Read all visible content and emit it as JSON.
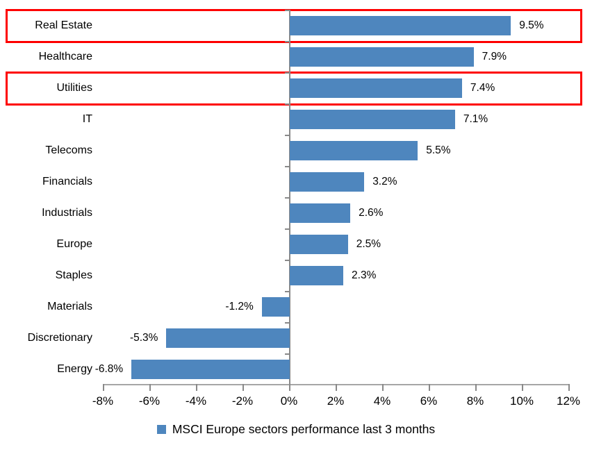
{
  "chart_data": {
    "type": "bar",
    "orientation": "horizontal",
    "title": "",
    "categories": [
      "Real Estate",
      "Healthcare",
      "Utilities",
      "IT",
      "Telecoms",
      "Financials",
      "Industrials",
      "Europe",
      "Staples",
      "Materials",
      "Discretionary",
      "Energy"
    ],
    "values": [
      9.5,
      7.9,
      7.4,
      7.1,
      5.5,
      3.2,
      2.6,
      2.5,
      2.3,
      -1.2,
      -5.3,
      -6.8
    ],
    "value_labels": [
      "9.5%",
      "7.9%",
      "7.4%",
      "7.1%",
      "5.5%",
      "3.2%",
      "2.6%",
      "2.5%",
      "2.3%",
      "-1.2%",
      "-5.3%",
      "-6.8%"
    ],
    "x_tick_labels": [
      "-8%",
      "-6%",
      "-4%",
      "-2%",
      "0%",
      "2%",
      "4%",
      "6%",
      "8%",
      "10%",
      "12%"
    ],
    "xlim": [
      -8,
      12
    ],
    "x_tick_step_pct": 2,
    "grid": false,
    "legend": "MSCI Europe sectors performance last 3 months",
    "legend_position": "bottom-center",
    "bar_color": "#4e86be",
    "axis_line_color": "#a6a6a6",
    "tick_color": "#898989",
    "highlight_border_color": "#fe0000",
    "highlighted_categories": [
      "Real Estate",
      "Utilities"
    ]
  }
}
